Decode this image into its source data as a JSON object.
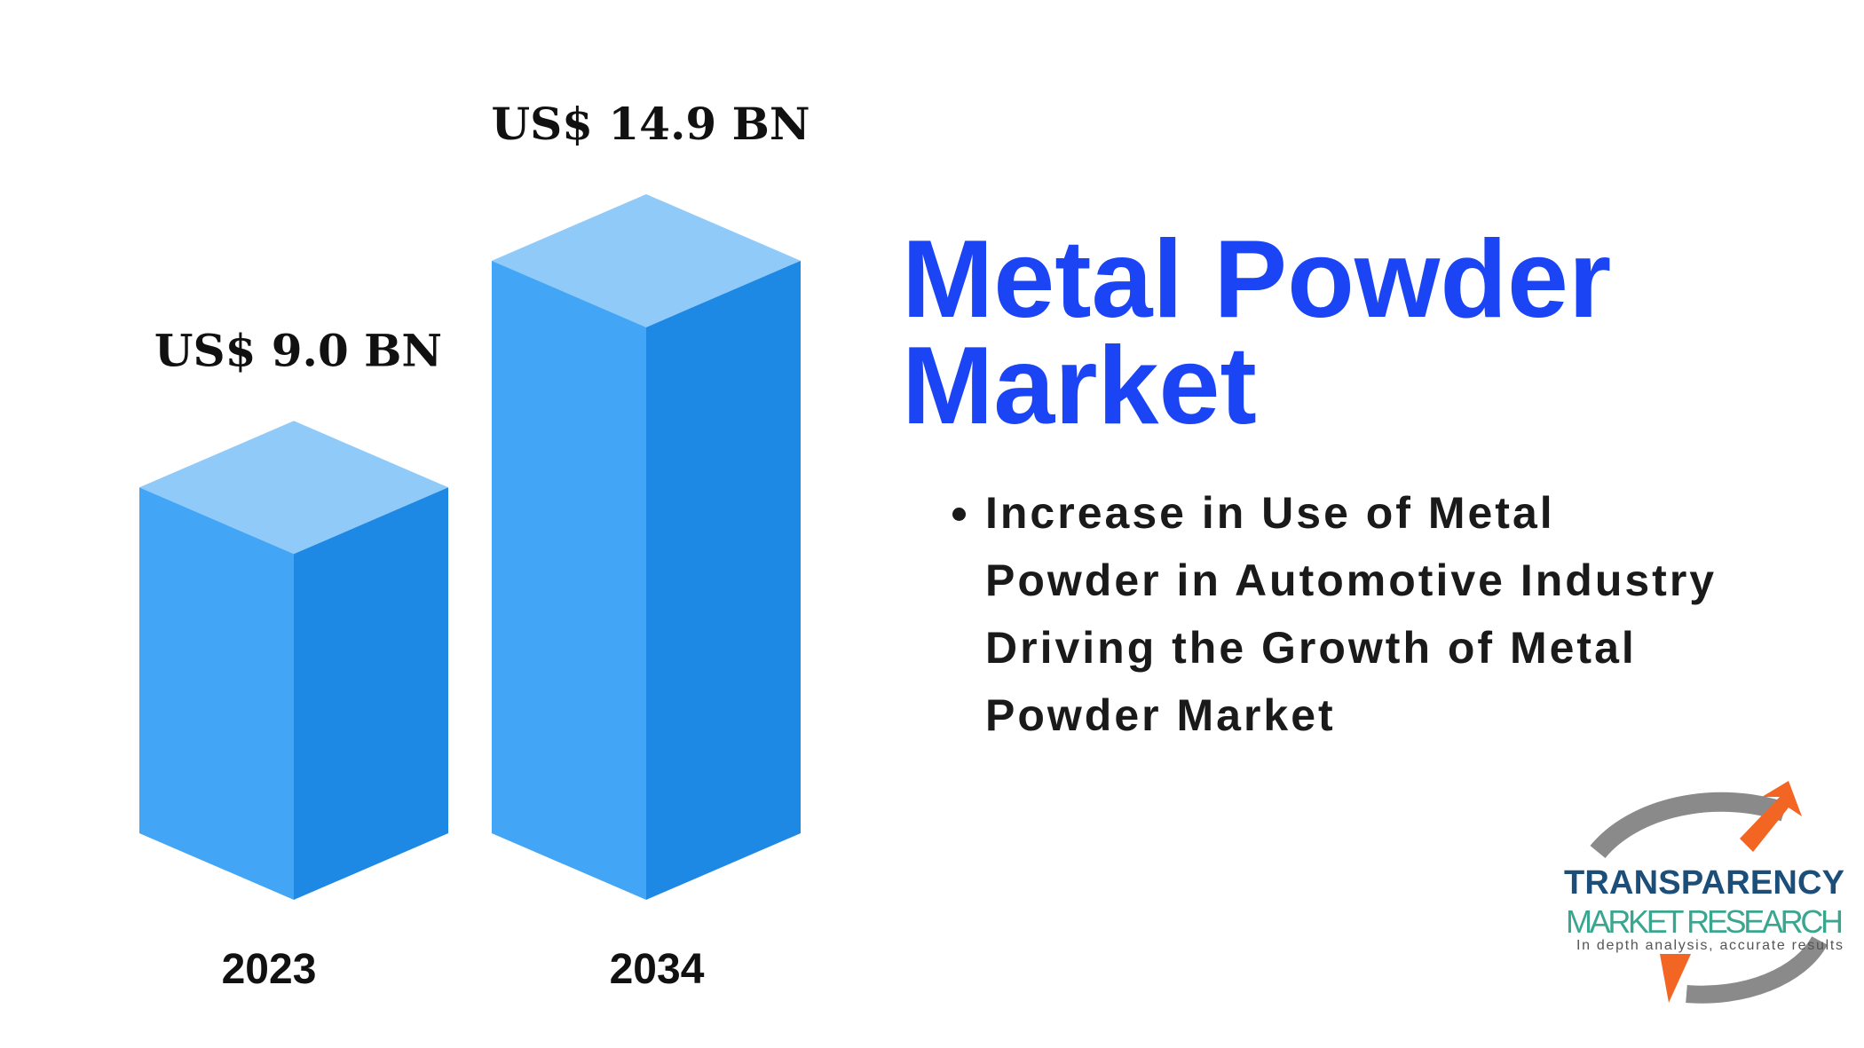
{
  "chart_data": {
    "type": "bar3d",
    "title": "Metal Powder Market",
    "categories": [
      "2023",
      "2034"
    ],
    "values": [
      9.0,
      14.9
    ],
    "value_labels": [
      "US$ 9.0 BN",
      "US$ 14.9 BN"
    ],
    "color": "#42a5f5",
    "annotations": [
      "Increase in Use of Metal Powder in Automotive Industry Driving the Growth of Metal Powder Market"
    ]
  },
  "logo": {
    "name": "TRANSPARENCY",
    "subtitle": "MARKET RESEARCH",
    "tagline": "In depth analysis, accurate results"
  }
}
